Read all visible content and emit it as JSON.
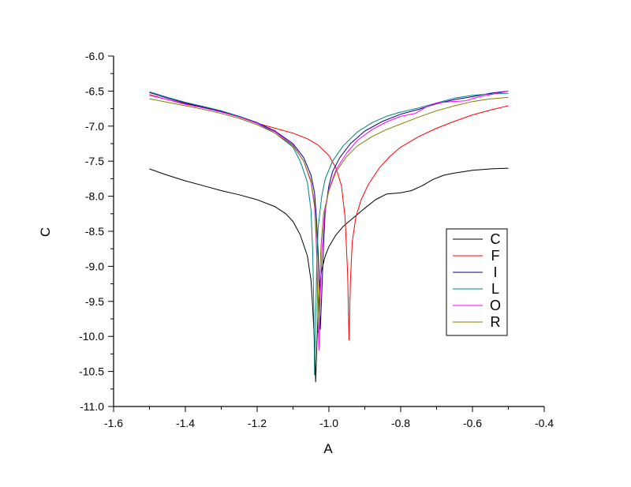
{
  "chart_data": {
    "type": "line",
    "title": "",
    "xlabel": "A",
    "ylabel": "C",
    "xlim": [
      -1.6,
      -0.4
    ],
    "ylim": [
      -11.0,
      -6.0
    ],
    "x_ticks": [
      "-1.6",
      "-1.4",
      "-1.2",
      "-1.0",
      "-0.8",
      "-0.6",
      "-0.4"
    ],
    "y_ticks": [
      "-6.0",
      "-6.5",
      "-7.0",
      "-7.5",
      "-8.0",
      "-8.5",
      "-9.0",
      "-9.5",
      "-10.0",
      "-10.5",
      "-11.0"
    ],
    "grid": false,
    "legend_position": "right-center",
    "series": [
      {
        "name": "C",
        "color": "#000000",
        "points": [
          [
            -1.5,
            -7.61
          ],
          [
            -1.45,
            -7.7
          ],
          [
            -1.4,
            -7.78
          ],
          [
            -1.35,
            -7.85
          ],
          [
            -1.3,
            -7.92
          ],
          [
            -1.25,
            -7.98
          ],
          [
            -1.2,
            -8.05
          ],
          [
            -1.15,
            -8.15
          ],
          [
            -1.12,
            -8.25
          ],
          [
            -1.1,
            -8.36
          ],
          [
            -1.08,
            -8.55
          ],
          [
            -1.06,
            -8.85
          ],
          [
            -1.05,
            -9.2
          ],
          [
            -1.045,
            -9.6
          ],
          [
            -1.04,
            -10.1
          ],
          [
            -1.037,
            -10.65
          ],
          [
            -1.034,
            -10.2
          ],
          [
            -1.03,
            -9.6
          ],
          [
            -1.025,
            -9.25
          ],
          [
            -1.02,
            -9.05
          ],
          [
            -1.01,
            -8.85
          ],
          [
            -1.0,
            -8.72
          ],
          [
            -0.98,
            -8.55
          ],
          [
            -0.96,
            -8.43
          ],
          [
            -0.93,
            -8.3
          ],
          [
            -0.9,
            -8.17
          ],
          [
            -0.87,
            -8.05
          ],
          [
            -0.84,
            -7.97
          ],
          [
            -0.8,
            -7.95
          ],
          [
            -0.77,
            -7.92
          ],
          [
            -0.74,
            -7.85
          ],
          [
            -0.71,
            -7.76
          ],
          [
            -0.68,
            -7.7
          ],
          [
            -0.65,
            -7.67
          ],
          [
            -0.6,
            -7.63
          ],
          [
            -0.55,
            -7.61
          ],
          [
            -0.5,
            -7.6
          ]
        ]
      },
      {
        "name": "F",
        "color": "#ff0000",
        "points": [
          [
            -1.5,
            -6.55
          ],
          [
            -1.45,
            -6.62
          ],
          [
            -1.4,
            -6.68
          ],
          [
            -1.35,
            -6.73
          ],
          [
            -1.3,
            -6.79
          ],
          [
            -1.25,
            -6.87
          ],
          [
            -1.2,
            -6.96
          ],
          [
            -1.15,
            -7.03
          ],
          [
            -1.1,
            -7.1
          ],
          [
            -1.06,
            -7.18
          ],
          [
            -1.03,
            -7.27
          ],
          [
            -1.0,
            -7.42
          ],
          [
            -0.98,
            -7.6
          ],
          [
            -0.965,
            -7.85
          ],
          [
            -0.955,
            -8.3
          ],
          [
            -0.948,
            -9.1
          ],
          [
            -0.944,
            -10.05
          ],
          [
            -0.94,
            -9.2
          ],
          [
            -0.935,
            -8.65
          ],
          [
            -0.925,
            -8.3
          ],
          [
            -0.91,
            -8.05
          ],
          [
            -0.89,
            -7.83
          ],
          [
            -0.86,
            -7.6
          ],
          [
            -0.83,
            -7.43
          ],
          [
            -0.8,
            -7.3
          ],
          [
            -0.75,
            -7.15
          ],
          [
            -0.7,
            -7.03
          ],
          [
            -0.65,
            -6.93
          ],
          [
            -0.6,
            -6.84
          ],
          [
            -0.55,
            -6.77
          ],
          [
            -0.5,
            -6.71
          ]
        ]
      },
      {
        "name": "I",
        "color": "#00008b",
        "points": [
          [
            -1.5,
            -6.52
          ],
          [
            -1.45,
            -6.6
          ],
          [
            -1.4,
            -6.67
          ],
          [
            -1.35,
            -6.73
          ],
          [
            -1.3,
            -6.79
          ],
          [
            -1.25,
            -6.86
          ],
          [
            -1.2,
            -6.95
          ],
          [
            -1.15,
            -7.07
          ],
          [
            -1.1,
            -7.25
          ],
          [
            -1.07,
            -7.45
          ],
          [
            -1.05,
            -7.7
          ],
          [
            -1.04,
            -7.95
          ],
          [
            -1.035,
            -8.3
          ],
          [
            -1.03,
            -8.8
          ],
          [
            -1.027,
            -9.4
          ],
          [
            -1.024,
            -9.9
          ],
          [
            -1.02,
            -9.4
          ],
          [
            -1.015,
            -8.7
          ],
          [
            -1.01,
            -8.2
          ],
          [
            -1.0,
            -7.85
          ],
          [
            -0.99,
            -7.65
          ],
          [
            -0.97,
            -7.45
          ],
          [
            -0.94,
            -7.25
          ],
          [
            -0.9,
            -7.07
          ],
          [
            -0.85,
            -6.93
          ],
          [
            -0.8,
            -6.83
          ],
          [
            -0.75,
            -6.76
          ],
          [
            -0.7,
            -6.68
          ],
          [
            -0.65,
            -6.62
          ],
          [
            -0.6,
            -6.58
          ],
          [
            -0.55,
            -6.53
          ],
          [
            -0.5,
            -6.5
          ]
        ]
      },
      {
        "name": "L",
        "color": "#008080",
        "points": [
          [
            -1.5,
            -6.51
          ],
          [
            -1.45,
            -6.59
          ],
          [
            -1.4,
            -6.66
          ],
          [
            -1.35,
            -6.72
          ],
          [
            -1.3,
            -6.78
          ],
          [
            -1.25,
            -6.86
          ],
          [
            -1.2,
            -6.96
          ],
          [
            -1.15,
            -7.1
          ],
          [
            -1.1,
            -7.3
          ],
          [
            -1.08,
            -7.5
          ],
          [
            -1.06,
            -7.8
          ],
          [
            -1.05,
            -8.2
          ],
          [
            -1.045,
            -8.8
          ],
          [
            -1.042,
            -9.6
          ],
          [
            -1.04,
            -10.55
          ],
          [
            -1.037,
            -9.8
          ],
          [
            -1.034,
            -9.0
          ],
          [
            -1.03,
            -8.45
          ],
          [
            -1.02,
            -8.0
          ],
          [
            -1.01,
            -7.75
          ],
          [
            -0.99,
            -7.5
          ],
          [
            -0.96,
            -7.28
          ],
          [
            -0.92,
            -7.08
          ],
          [
            -0.88,
            -6.95
          ],
          [
            -0.84,
            -6.86
          ],
          [
            -0.8,
            -6.8
          ],
          [
            -0.75,
            -6.74
          ],
          [
            -0.7,
            -6.67
          ],
          [
            -0.65,
            -6.6
          ],
          [
            -0.6,
            -6.56
          ],
          [
            -0.55,
            -6.54
          ],
          [
            -0.5,
            -6.53
          ]
        ]
      },
      {
        "name": "O",
        "color": "#ff00ff",
        "points": [
          [
            -1.5,
            -6.56
          ],
          [
            -1.45,
            -6.62
          ],
          [
            -1.4,
            -6.69
          ],
          [
            -1.35,
            -6.74
          ],
          [
            -1.3,
            -6.8
          ],
          [
            -1.25,
            -6.87
          ],
          [
            -1.2,
            -6.96
          ],
          [
            -1.15,
            -7.08
          ],
          [
            -1.1,
            -7.27
          ],
          [
            -1.07,
            -7.5
          ],
          [
            -1.05,
            -7.8
          ],
          [
            -1.04,
            -8.15
          ],
          [
            -1.035,
            -8.7
          ],
          [
            -1.03,
            -9.5
          ],
          [
            -1.028,
            -10.2
          ],
          [
            -1.025,
            -9.6
          ],
          [
            -1.02,
            -8.8
          ],
          [
            -1.012,
            -8.25
          ],
          [
            -1.0,
            -7.9
          ],
          [
            -0.98,
            -7.62
          ],
          [
            -0.95,
            -7.38
          ],
          [
            -0.92,
            -7.2
          ],
          [
            -0.88,
            -7.05
          ],
          [
            -0.84,
            -6.94
          ],
          [
            -0.8,
            -6.86
          ],
          [
            -0.76,
            -6.82
          ],
          [
            -0.73,
            -6.73
          ],
          [
            -0.7,
            -6.67
          ],
          [
            -0.66,
            -6.65
          ],
          [
            -0.62,
            -6.64
          ],
          [
            -0.58,
            -6.58
          ],
          [
            -0.54,
            -6.54
          ],
          [
            -0.5,
            -6.5
          ]
        ]
      },
      {
        "name": "R",
        "color": "#808000",
        "points": [
          [
            -1.5,
            -6.61
          ],
          [
            -1.45,
            -6.66
          ],
          [
            -1.4,
            -6.71
          ],
          [
            -1.35,
            -6.76
          ],
          [
            -1.3,
            -6.82
          ],
          [
            -1.25,
            -6.89
          ],
          [
            -1.2,
            -6.98
          ],
          [
            -1.15,
            -7.1
          ],
          [
            -1.1,
            -7.28
          ],
          [
            -1.07,
            -7.5
          ],
          [
            -1.05,
            -7.78
          ],
          [
            -1.04,
            -8.1
          ],
          [
            -1.035,
            -8.6
          ],
          [
            -1.032,
            -9.3
          ],
          [
            -1.03,
            -9.95
          ],
          [
            -1.027,
            -9.3
          ],
          [
            -1.022,
            -8.7
          ],
          [
            -1.015,
            -8.25
          ],
          [
            -1.0,
            -7.92
          ],
          [
            -0.98,
            -7.65
          ],
          [
            -0.95,
            -7.43
          ],
          [
            -0.92,
            -7.28
          ],
          [
            -0.88,
            -7.15
          ],
          [
            -0.84,
            -7.05
          ],
          [
            -0.8,
            -6.97
          ],
          [
            -0.75,
            -6.87
          ],
          [
            -0.7,
            -6.78
          ],
          [
            -0.65,
            -6.71
          ],
          [
            -0.6,
            -6.65
          ],
          [
            -0.55,
            -6.61
          ],
          [
            -0.5,
            -6.59
          ]
        ]
      }
    ]
  }
}
